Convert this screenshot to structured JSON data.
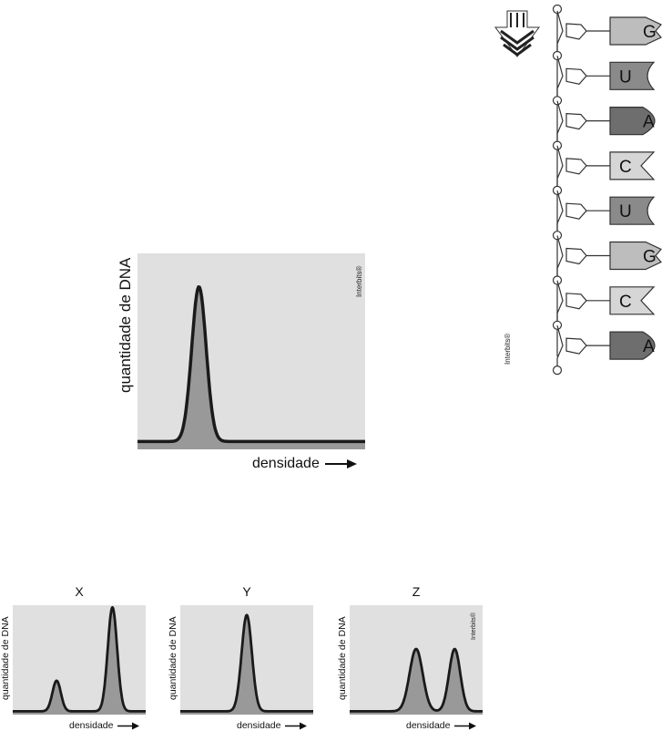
{
  "main_chart": {
    "ylabel": "quantidade de DNA",
    "xlabel": "densidade",
    "watermark": "Interbits®",
    "peaks": [
      {
        "position": 0.27,
        "height": 0.79,
        "width": 0.045
      }
    ],
    "baseline": 0.04,
    "colors": {
      "plot_bg": "#e0e0e0",
      "fill": "#999999",
      "line": "#1a1a1a"
    }
  },
  "rna_strand": {
    "watermark": "Interbits®",
    "arrow_icon": "striped-down-arrow-icon",
    "bases": [
      {
        "letter": "G",
        "shape": "g-notch",
        "color": "#bdbdbd"
      },
      {
        "letter": "U",
        "shape": "u-concave",
        "color": "#8a8a8a"
      },
      {
        "letter": "A",
        "shape": "a-round",
        "color": "#6e6e6e"
      },
      {
        "letter": "C",
        "shape": "c-vnotch",
        "color": "#d6d6d6"
      },
      {
        "letter": "U",
        "shape": "u-concave",
        "color": "#8a8a8a"
      },
      {
        "letter": "G",
        "shape": "g-notch",
        "color": "#bdbdbd"
      },
      {
        "letter": "C",
        "shape": "c-vnotch",
        "color": "#d6d6d6"
      },
      {
        "letter": "A",
        "shape": "a-round",
        "color": "#6e6e6e"
      }
    ]
  },
  "small_charts": [
    {
      "title": "X",
      "ylabel": "quantidade de DNA",
      "xlabel": "densidade",
      "watermark": "",
      "peaks": [
        {
          "position": 0.33,
          "height": 0.28,
          "width": 0.045
        },
        {
          "position": 0.75,
          "height": 0.95,
          "width": 0.05
        }
      ]
    },
    {
      "title": "Y",
      "ylabel": "quantidade de DNA",
      "xlabel": "densidade",
      "watermark": "",
      "peaks": [
        {
          "position": 0.5,
          "height": 0.88,
          "width": 0.055
        }
      ]
    },
    {
      "title": "Z",
      "ylabel": "quantidade de DNA",
      "xlabel": "densidade",
      "watermark": "Interbits®",
      "peaks": [
        {
          "position": 0.5,
          "height": 0.57,
          "width": 0.07
        },
        {
          "position": 0.79,
          "height": 0.57,
          "width": 0.06
        }
      ]
    }
  ]
}
